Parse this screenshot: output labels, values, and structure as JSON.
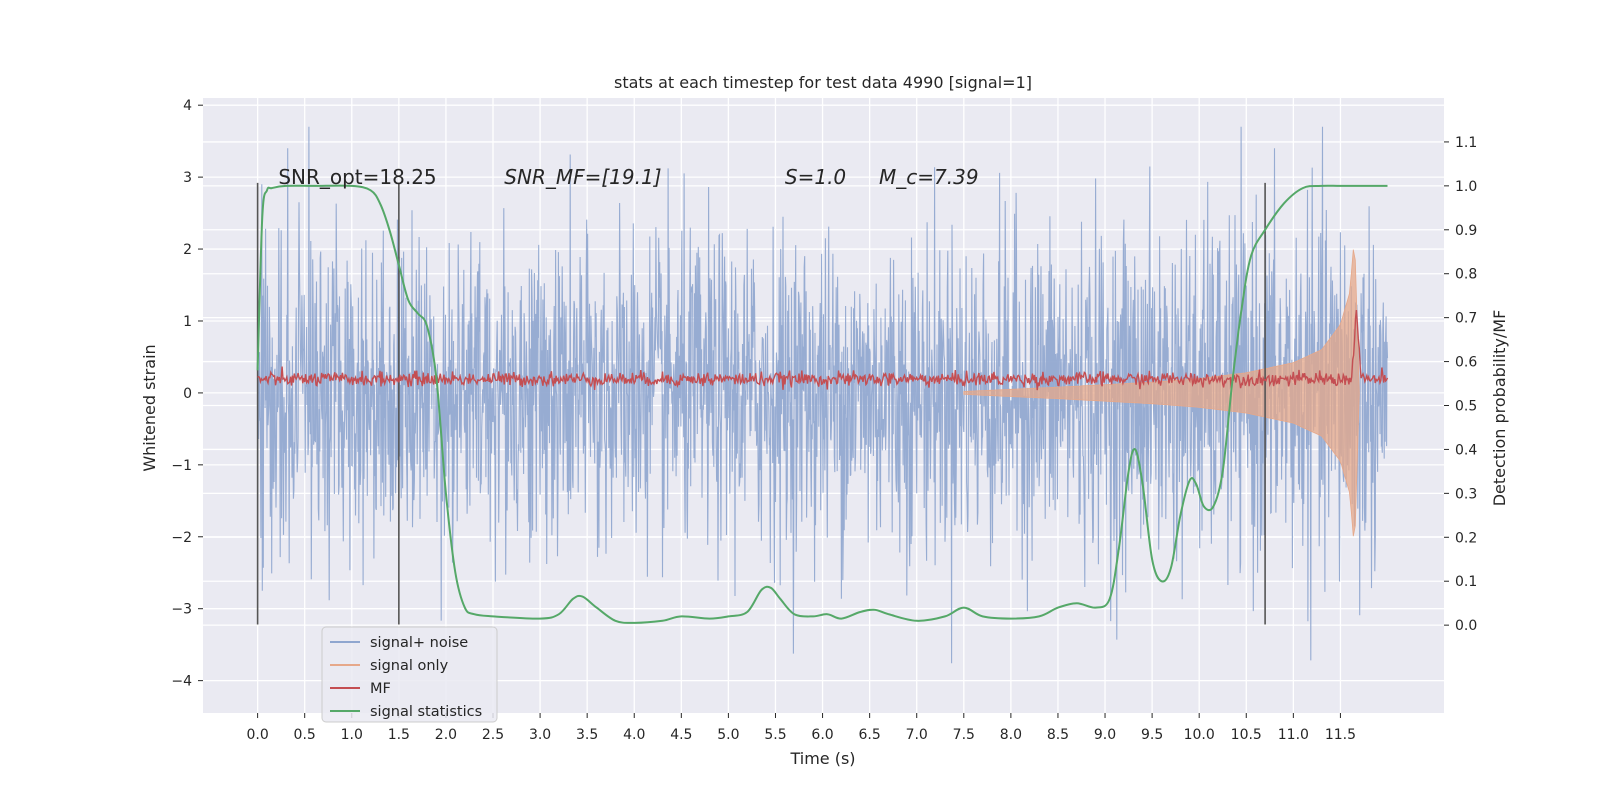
{
  "chart_data": {
    "type": "line",
    "title": "stats at each timestep for test data 4990 [signal=1]",
    "xlabel": "Time (s)",
    "ylabel": "Whitened strain",
    "y2label": "Detection probability/MF",
    "xlim": [
      -0.58,
      12.6
    ],
    "ylim": [
      -4.45,
      4.1
    ],
    "y2lim": [
      -0.2,
      1.2
    ],
    "x_ticks": [
      0.0,
      0.5,
      1.0,
      1.5,
      2.0,
      2.5,
      3.0,
      3.5,
      4.0,
      4.5,
      5.0,
      5.5,
      6.0,
      6.5,
      7.0,
      7.5,
      8.0,
      8.5,
      9.0,
      9.5,
      10.0,
      10.5,
      11.0,
      11.5
    ],
    "x_tick_labels": [
      "0.0",
      "0.5",
      "1.0",
      "1.5",
      "2.0",
      "2.5",
      "3.0",
      "3.5",
      "4.0",
      "4.5",
      "5.0",
      "5.5",
      "6.0",
      "6.5",
      "7.0",
      "7.5",
      "8.0",
      "8.5",
      "9.0",
      "9.5",
      "10.0",
      "10.5",
      "11.0",
      "11.5"
    ],
    "y_ticks": [
      -4,
      -3,
      -2,
      -1,
      0,
      1,
      2,
      3,
      4
    ],
    "y_tick_labels": [
      "−4",
      "−3",
      "−2",
      "−1",
      "0",
      "1",
      "2",
      "3",
      "4"
    ],
    "y2_ticks": [
      0.0,
      0.1,
      0.2,
      0.3,
      0.4,
      0.5,
      0.6,
      0.7,
      0.8,
      0.9,
      1.0,
      1.1
    ],
    "y2_tick_labels": [
      "0.0",
      "0.1",
      "0.2",
      "0.3",
      "0.4",
      "0.5",
      "0.6",
      "0.7",
      "0.8",
      "0.9",
      "1.0",
      "1.1"
    ],
    "grid": true,
    "legend_position": "lower-left",
    "annotations": [
      {
        "label": "SNR_opt=18.25",
        "x": 0.22,
        "y": 3.0
      },
      {
        "label": "SNR_MF=[19.1]",
        "x": 2.62,
        "y": 3.0
      },
      {
        "label": "S=1.0",
        "x": 5.6,
        "y": 3.0
      },
      {
        "label": "M_c=7.39",
        "x": 6.6,
        "y": 3.0
      }
    ],
    "vertical_lines": [
      {
        "x": 0.0,
        "y_from": -3.22,
        "y_to": 2.92
      },
      {
        "x": 1.5,
        "y_from": -3.22,
        "y_to": 2.92
      },
      {
        "x": 10.7,
        "y_from": -3.22,
        "y_to": 2.92
      }
    ],
    "series": [
      {
        "name": "signal+ noise",
        "color": "#8fa6cf",
        "x_range": [
          0.0,
          12.0
        ],
        "amplitude_envelope": {
          "x": [
            0.0,
            3.0,
            6.0,
            9.0,
            11.0,
            11.7,
            12.0
          ],
          "y": [
            2.5,
            2.6,
            2.6,
            2.7,
            2.9,
            3.2,
            2.4
          ]
        }
      },
      {
        "name": "signal only",
        "color": "#e6a88a",
        "envelope": {
          "x": [
            7.5,
            8.5,
            9.5,
            10.0,
            10.5,
            11.0,
            11.3,
            11.5,
            11.6,
            11.65,
            11.7
          ],
          "y": [
            0.02,
            0.08,
            0.15,
            0.2,
            0.28,
            0.42,
            0.6,
            0.95,
            1.4,
            2.2,
            0.0
          ]
        }
      },
      {
        "name": "MF",
        "color": "#c44e52",
        "baseline": 0.56,
        "spike": {
          "x": 11.67,
          "y": 0.72
        }
      },
      {
        "name": "signal statistics",
        "color": "#55a868",
        "x": [
          0.0,
          0.05,
          0.1,
          0.15,
          0.3,
          0.6,
          1.0,
          1.2,
          1.3,
          1.4,
          1.5,
          1.6,
          1.7,
          1.8,
          1.9,
          2.0,
          2.1,
          2.2,
          2.3,
          2.5,
          3.0,
          3.2,
          3.35,
          3.45,
          3.6,
          3.8,
          4.0,
          4.3,
          4.5,
          4.8,
          5.0,
          5.2,
          5.35,
          5.45,
          5.55,
          5.7,
          5.9,
          6.05,
          6.2,
          6.4,
          6.55,
          6.7,
          7.0,
          7.3,
          7.5,
          7.7,
          8.0,
          8.3,
          8.5,
          8.7,
          8.9,
          9.05,
          9.15,
          9.25,
          9.32,
          9.4,
          9.5,
          9.6,
          9.7,
          9.8,
          9.9,
          9.97,
          10.05,
          10.15,
          10.25,
          10.35,
          10.45,
          10.55,
          10.7,
          10.9,
          11.1,
          11.3,
          11.5,
          11.8,
          12.0
        ],
        "y": [
          0.58,
          0.93,
          0.99,
          0.995,
          1.0,
          1.0,
          1.0,
          0.99,
          0.96,
          0.9,
          0.82,
          0.74,
          0.71,
          0.68,
          0.56,
          0.3,
          0.12,
          0.04,
          0.025,
          0.02,
          0.015,
          0.025,
          0.06,
          0.065,
          0.04,
          0.01,
          0.005,
          0.01,
          0.02,
          0.015,
          0.02,
          0.03,
          0.08,
          0.085,
          0.06,
          0.025,
          0.02,
          0.025,
          0.015,
          0.03,
          0.035,
          0.025,
          0.01,
          0.02,
          0.04,
          0.02,
          0.015,
          0.02,
          0.04,
          0.05,
          0.04,
          0.06,
          0.18,
          0.35,
          0.4,
          0.32,
          0.15,
          0.1,
          0.13,
          0.25,
          0.33,
          0.32,
          0.27,
          0.27,
          0.35,
          0.55,
          0.72,
          0.84,
          0.9,
          0.96,
          0.995,
          1.0,
          1.0,
          1.0,
          1.0
        ]
      }
    ]
  }
}
